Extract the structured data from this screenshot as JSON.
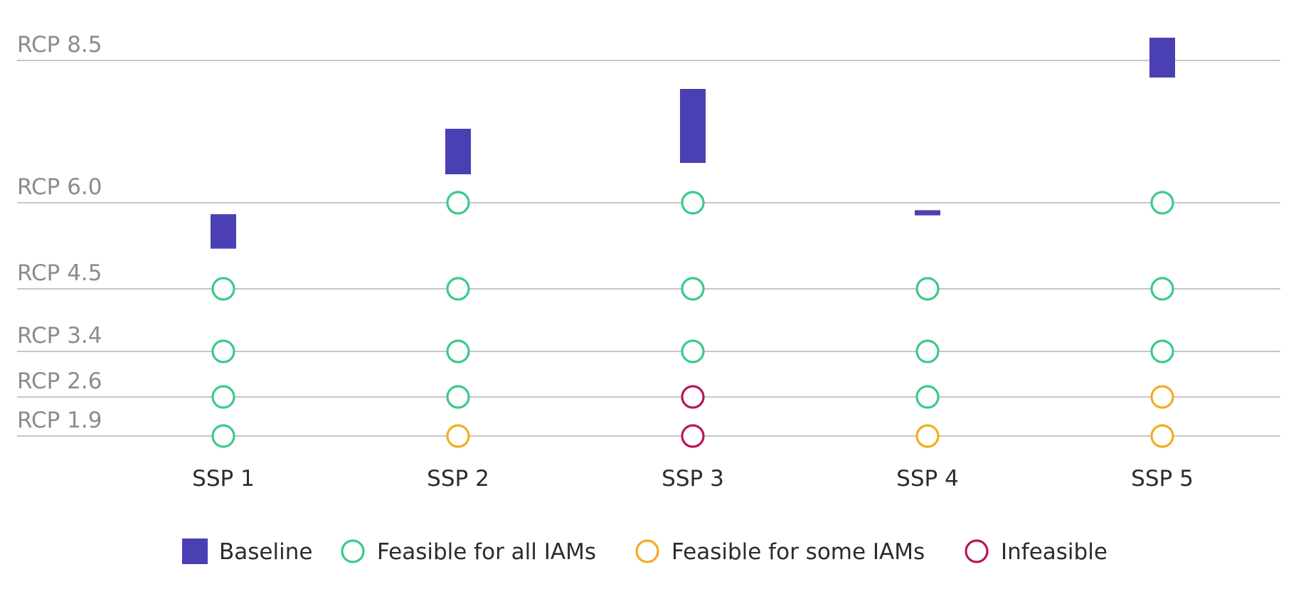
{
  "chart_data": {
    "type": "scatter",
    "title": "",
    "xlabel": "",
    "ylabel": "",
    "categories": [
      "SSP 1",
      "SSP 2",
      "SSP 3",
      "SSP 4",
      "SSP 5"
    ],
    "rcp_levels": [
      {
        "label": "RCP 8.5",
        "value": 8.5
      },
      {
        "label": "RCP 6.0",
        "value": 6.0
      },
      {
        "label": "RCP 4.5",
        "value": 4.5
      },
      {
        "label": "RCP 3.4",
        "value": 3.4
      },
      {
        "label": "RCP 2.6",
        "value": 2.6
      },
      {
        "label": "RCP 1.9",
        "value": 1.9
      }
    ],
    "baseline_ranges": [
      {
        "category": "SSP 1",
        "low": 5.2,
        "high": 5.8
      },
      {
        "category": "SSP 2",
        "low": 6.5,
        "high": 7.3
      },
      {
        "category": "SSP 3",
        "low": 6.7,
        "high": 8.0
      },
      {
        "category": "SSP 4",
        "low": 5.78,
        "high": 5.87
      },
      {
        "category": "SSP 5",
        "low": 8.2,
        "high": 8.9
      }
    ],
    "feasibility": [
      {
        "category": "SSP 1",
        "rcp": 4.5,
        "status": "feasible_all"
      },
      {
        "category": "SSP 1",
        "rcp": 3.4,
        "status": "feasible_all"
      },
      {
        "category": "SSP 1",
        "rcp": 2.6,
        "status": "feasible_all"
      },
      {
        "category": "SSP 1",
        "rcp": 1.9,
        "status": "feasible_all"
      },
      {
        "category": "SSP 2",
        "rcp": 6.0,
        "status": "feasible_all"
      },
      {
        "category": "SSP 2",
        "rcp": 4.5,
        "status": "feasible_all"
      },
      {
        "category": "SSP 2",
        "rcp": 3.4,
        "status": "feasible_all"
      },
      {
        "category": "SSP 2",
        "rcp": 2.6,
        "status": "feasible_all"
      },
      {
        "category": "SSP 2",
        "rcp": 1.9,
        "status": "feasible_some"
      },
      {
        "category": "SSP 3",
        "rcp": 6.0,
        "status": "feasible_all"
      },
      {
        "category": "SSP 3",
        "rcp": 4.5,
        "status": "feasible_all"
      },
      {
        "category": "SSP 3",
        "rcp": 3.4,
        "status": "feasible_all"
      },
      {
        "category": "SSP 3",
        "rcp": 2.6,
        "status": "infeasible"
      },
      {
        "category": "SSP 3",
        "rcp": 1.9,
        "status": "infeasible"
      },
      {
        "category": "SSP 4",
        "rcp": 4.5,
        "status": "feasible_all"
      },
      {
        "category": "SSP 4",
        "rcp": 3.4,
        "status": "feasible_all"
      },
      {
        "category": "SSP 4",
        "rcp": 2.6,
        "status": "feasible_all"
      },
      {
        "category": "SSP 4",
        "rcp": 1.9,
        "status": "feasible_some"
      },
      {
        "category": "SSP 5",
        "rcp": 6.0,
        "status": "feasible_all"
      },
      {
        "category": "SSP 5",
        "rcp": 4.5,
        "status": "feasible_all"
      },
      {
        "category": "SSP 5",
        "rcp": 3.4,
        "status": "feasible_all"
      },
      {
        "category": "SSP 5",
        "rcp": 2.6,
        "status": "feasible_some"
      },
      {
        "category": "SSP 5",
        "rcp": 1.9,
        "status": "feasible_some"
      }
    ],
    "legend": {
      "placement": "bottom",
      "items": [
        {
          "key": "baseline",
          "label": "Baseline",
          "shape": "square"
        },
        {
          "key": "feasible_all",
          "label": "Feasible for all IAMs",
          "shape": "circle"
        },
        {
          "key": "feasible_some",
          "label": "Feasible for some IAMs",
          "shape": "circle"
        },
        {
          "key": "infeasible",
          "label": "Infeasible",
          "shape": "circle"
        }
      ]
    },
    "colors": {
      "baseline": "#4b3fb4",
      "feasible_all": "#3cc98a",
      "feasible_some": "#f5ac1c",
      "infeasible": "#b8155e",
      "gridline": "#b4b4b4"
    },
    "grid": true
  }
}
